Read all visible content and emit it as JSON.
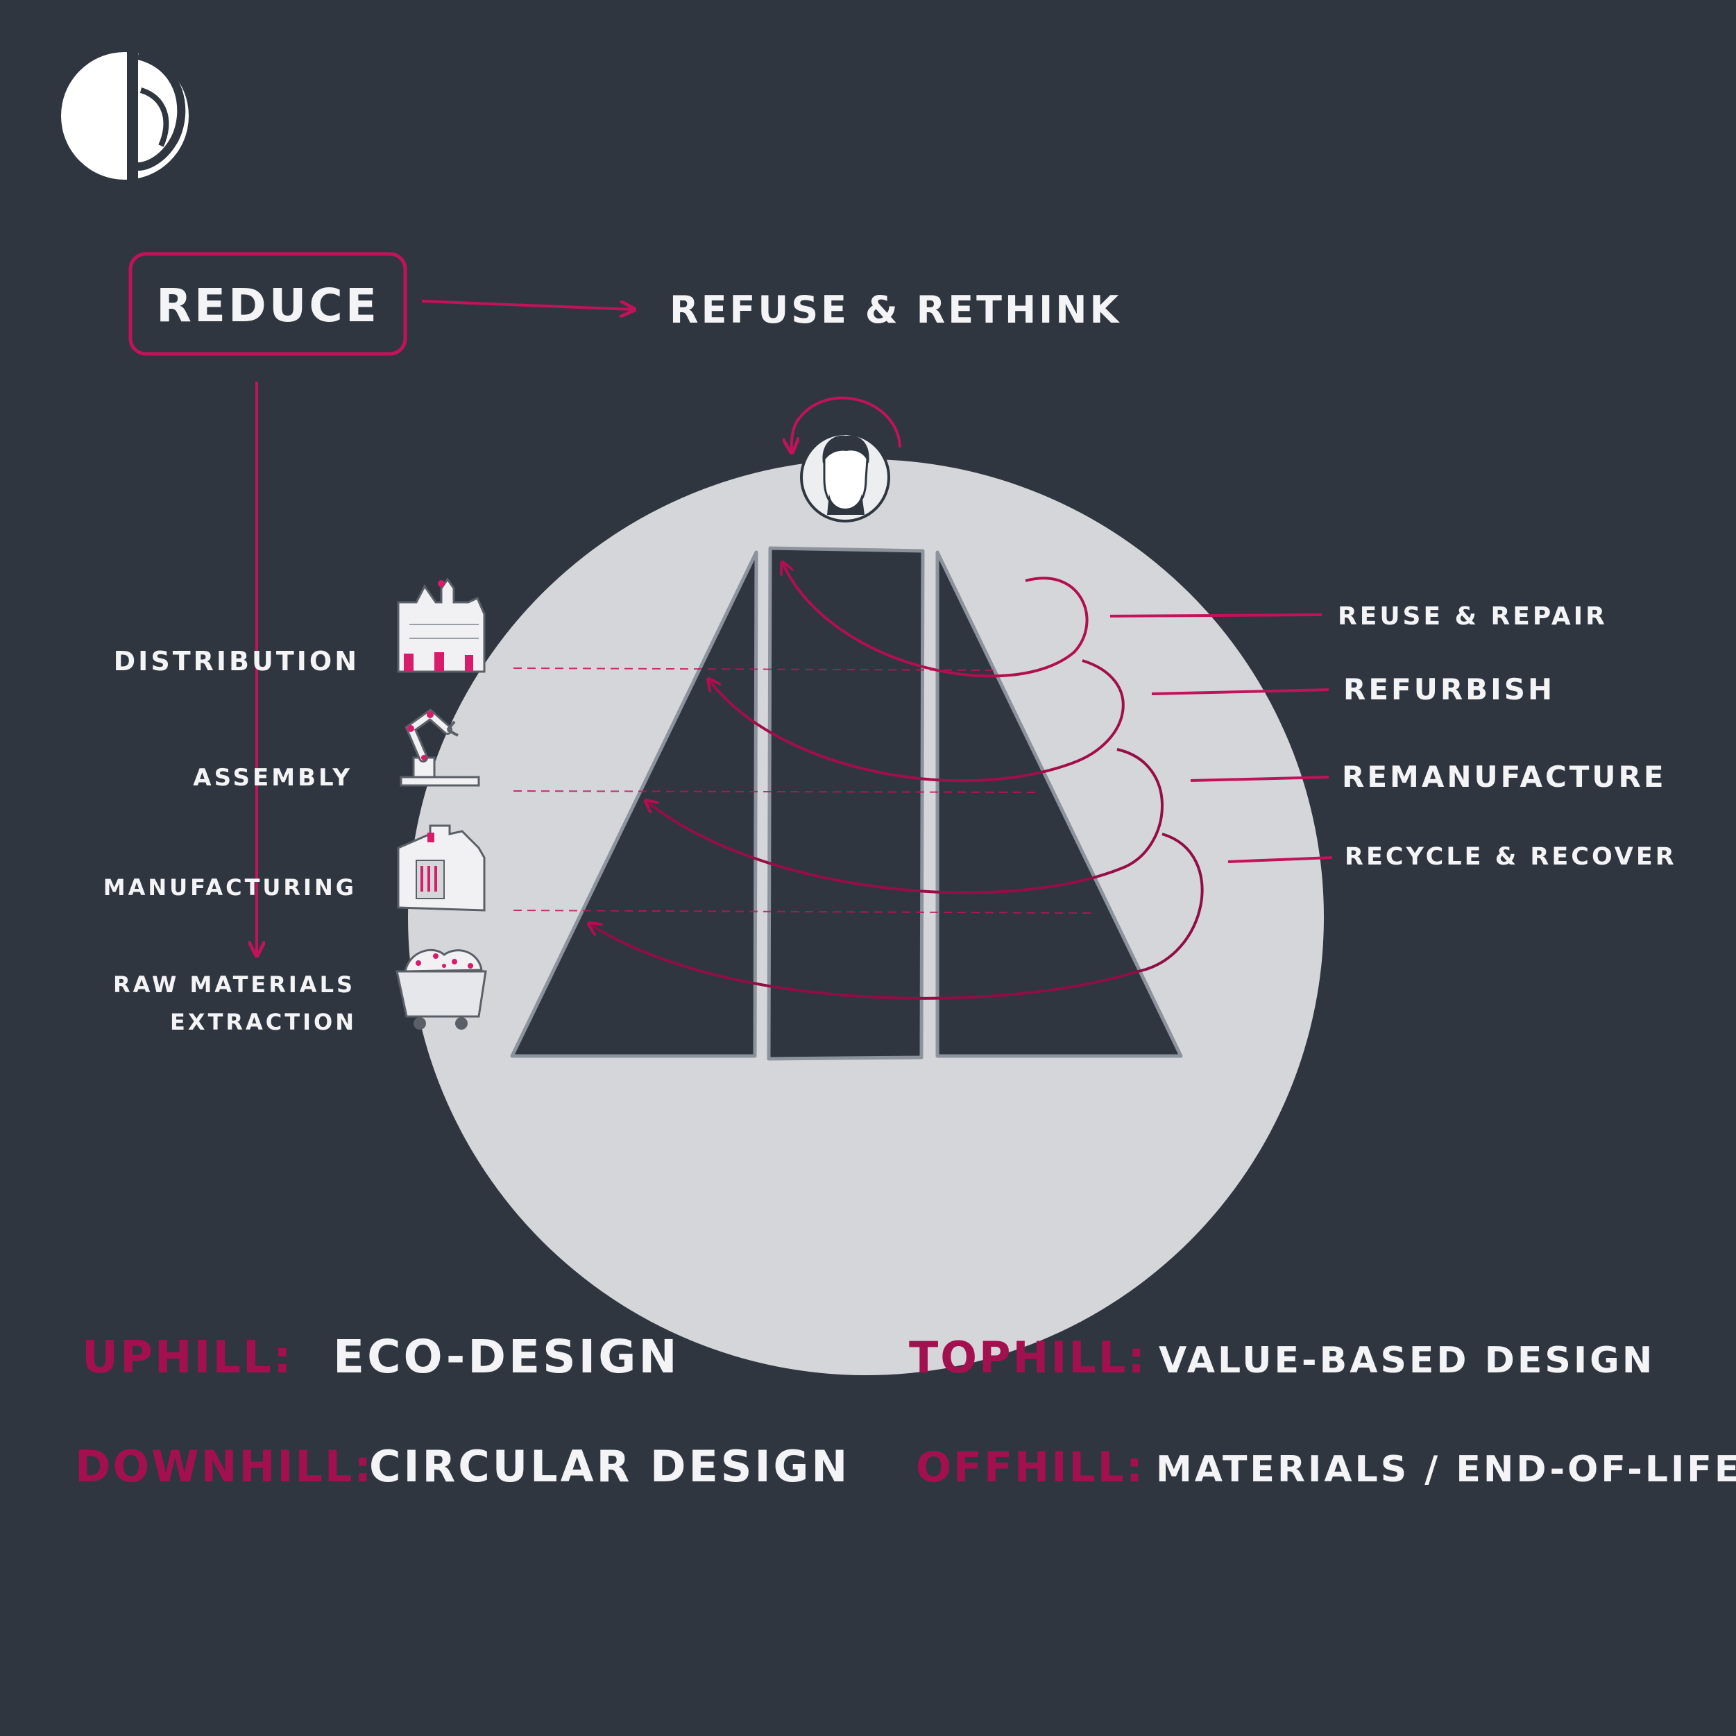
{
  "colors": {
    "background": "#2f3640",
    "accent": "#c2125a",
    "accent_dark": "#8e0e45",
    "circle": "#d5d6da",
    "text": "#f4f4f6"
  },
  "logo": {
    "icon": "brand-logo-icon"
  },
  "reduce": {
    "label": "REDUCE"
  },
  "refuse": {
    "label": "REFUSE & RETHINK"
  },
  "person": {
    "icon": "person-avatar-icon"
  },
  "stages": [
    {
      "label": "DISTRIBUTION",
      "icon": "warehouse-icon"
    },
    {
      "label": "ASSEMBLY",
      "icon": "robot-arm-icon"
    },
    {
      "label": "MANUFACTURING",
      "icon": "factory-icon"
    },
    {
      "label_line1": "RAW MATERIALS",
      "label_line2": "EXTRACTION",
      "icon": "mine-cart-icon"
    }
  ],
  "loops": [
    {
      "label": "REUSE & REPAIR"
    },
    {
      "label": "REFURBISH"
    },
    {
      "label": "REMANUFACTURE"
    },
    {
      "label": "RECYCLE & RECOVER"
    }
  ],
  "legend": [
    {
      "key": "UPHILL:",
      "value": "ECO-DESIGN"
    },
    {
      "key": "TOPHILL:",
      "value": "VALUE-BASED DESIGN"
    },
    {
      "key": "DOWNHILL:",
      "value": "CIRCULAR DESIGN"
    },
    {
      "key": "OFFHILL:",
      "value": "MATERIALS / END-OF-LIFE"
    }
  ]
}
